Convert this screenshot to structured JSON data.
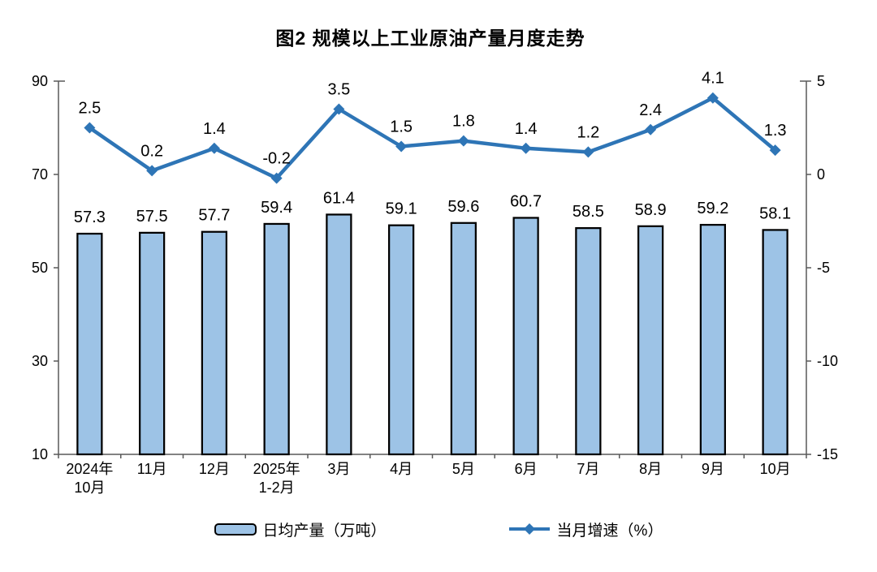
{
  "title": "图2 规模以上工业原油产量月度走势",
  "chart_data": {
    "type": "combo",
    "title": "图2 规模以上工业原油产量月度走势",
    "categories": [
      [
        "2024年",
        "10月"
      ],
      [
        "11月"
      ],
      [
        "12月"
      ],
      [
        "2025年",
        "1-2月"
      ],
      [
        "3月"
      ],
      [
        "4月"
      ],
      [
        "5月"
      ],
      [
        "6月"
      ],
      [
        "7月"
      ],
      [
        "8月"
      ],
      [
        "9月"
      ],
      [
        "10月"
      ]
    ],
    "series": [
      {
        "name": "日均产量（万吨）",
        "type": "bar",
        "axis": "left",
        "values": [
          57.3,
          57.5,
          57.7,
          59.4,
          61.4,
          59.1,
          59.6,
          60.7,
          58.5,
          58.9,
          59.2,
          58.1
        ]
      },
      {
        "name": "当月增速（%）",
        "type": "line",
        "axis": "right",
        "values": [
          2.5,
          0.2,
          1.4,
          -0.2,
          3.5,
          1.5,
          1.8,
          1.4,
          1.2,
          2.4,
          4.1,
          1.3
        ]
      }
    ],
    "left_axis": {
      "min": 10,
      "max": 90,
      "ticks": [
        90,
        70,
        50,
        30,
        10
      ]
    },
    "right_axis": {
      "min": -15,
      "max": 5,
      "ticks": [
        5,
        0,
        -5,
        -10,
        -15
      ]
    },
    "legend_position": "bottom",
    "grid": false
  },
  "colors": {
    "bar_fill": "#9DC3E6",
    "bar_stroke": "#000000",
    "line": "#2E75B6",
    "axis": "#595959",
    "text": "#000000",
    "background": "#FFFFFF"
  }
}
